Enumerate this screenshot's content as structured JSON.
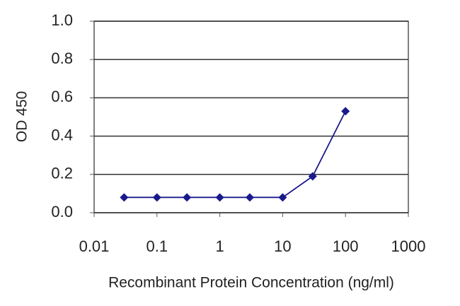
{
  "chart_data": {
    "type": "line",
    "x_label": "Recombinant Protein Concentration (ng/ml)",
    "y_label": "OD 450",
    "x": [
      0.03,
      0.1,
      0.3,
      1,
      3,
      10,
      30,
      100
    ],
    "series": [
      {
        "color": "#1a1a8c",
        "values": [
          0.08,
          0.08,
          0.08,
          0.08,
          0.08,
          0.08,
          0.19,
          0.53
        ]
      }
    ],
    "xlim": [
      0.01,
      1000
    ],
    "xticks": [
      0.01,
      0.1,
      1,
      10,
      100,
      1000
    ],
    "xscale": "log",
    "ylim": [
      0,
      1
    ],
    "yticks": [
      {
        "value": 0,
        "label": "0.0"
      },
      0.2,
      0.4,
      0.6,
      0.8,
      {
        "value": 1,
        "label": "1.0"
      }
    ],
    "grid": true
  }
}
